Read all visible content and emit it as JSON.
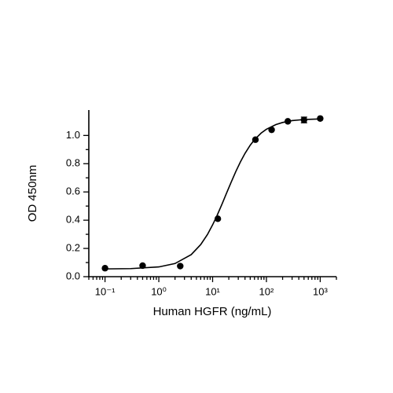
{
  "chart_data": {
    "type": "scatter",
    "x_label": "Human HGFR (ng/mL)",
    "y_label": "OD 450nm",
    "xscale": "log",
    "xlim": [
      0.05,
      2000
    ],
    "xticks": [
      {
        "value": 0.1,
        "label": "10⁻¹"
      },
      {
        "value": 1,
        "label": "10⁰"
      },
      {
        "value": 10,
        "label": "10¹"
      },
      {
        "value": 100,
        "label": "10²"
      },
      {
        "value": 1000,
        "label": "10³"
      }
    ],
    "ylim": [
      0,
      1.18
    ],
    "yticks": [
      {
        "value": 0,
        "label": "0.0"
      },
      0.2,
      0.4,
      0.6,
      0.8,
      {
        "value": 1,
        "label": "1.0"
      }
    ],
    "color": "#000000",
    "x": [
      0.1,
      0.5,
      2.5,
      12.5,
      62.5,
      125,
      250,
      500,
      1000
    ],
    "values": [
      0.06,
      0.078,
      0.075,
      0.41,
      0.97,
      1.04,
      1.1,
      1.11,
      1.12
    ],
    "errors": [
      null,
      null,
      null,
      null,
      null,
      null,
      null,
      0.02,
      null
    ],
    "fit": {
      "x": [
        0.1,
        0.3,
        1,
        2,
        4,
        6,
        8,
        10,
        12,
        15,
        18,
        22,
        27,
        33,
        40,
        50,
        60,
        80,
        100,
        150,
        200,
        300,
        500,
        1000
      ],
      "values": [
        0.055,
        0.057,
        0.069,
        0.093,
        0.156,
        0.227,
        0.298,
        0.367,
        0.43,
        0.515,
        0.588,
        0.667,
        0.745,
        0.814,
        0.873,
        0.931,
        0.97,
        1.017,
        1.044,
        1.077,
        1.092,
        1.105,
        1.113,
        1.117
      ]
    }
  }
}
